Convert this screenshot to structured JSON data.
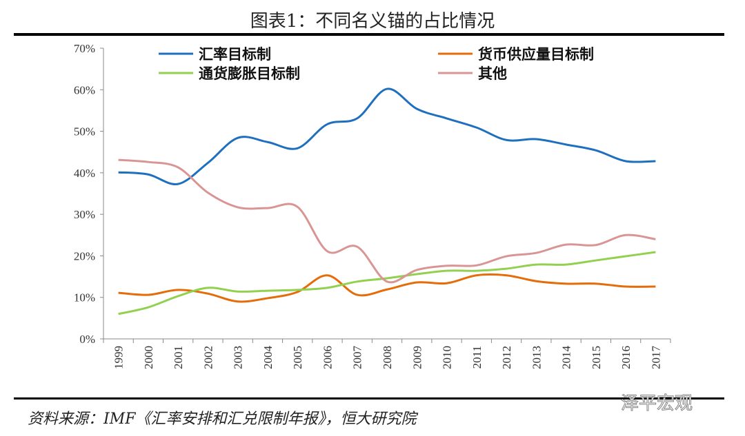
{
  "chart_data": {
    "type": "line",
    "title": "图表1：不同名义锚的占比情况",
    "xlabel": "",
    "ylabel": "",
    "ylim": [
      0,
      70
    ],
    "yticks": [
      "0%",
      "10%",
      "20%",
      "30%",
      "40%",
      "50%",
      "60%",
      "70%"
    ],
    "categories": [
      "1999",
      "2000",
      "2001",
      "2002",
      "2003",
      "2004",
      "2005",
      "2006",
      "2007",
      "2008",
      "2009",
      "2010",
      "2011",
      "2012",
      "2013",
      "2014",
      "2015",
      "2016",
      "2017"
    ],
    "legend_placement": "top",
    "grid": false,
    "series": [
      {
        "name": "汇率目标制",
        "color": "#1f6fbf",
        "values": [
          40.1,
          39.6,
          37.3,
          42.4,
          48.4,
          47.4,
          45.9,
          51.7,
          53.1,
          60.2,
          55.4,
          53.1,
          50.9,
          47.9,
          48.1,
          46.8,
          45.4,
          42.8,
          42.8
        ]
      },
      {
        "name": "货币供应量目标制",
        "color": "#e46c0a",
        "values": [
          11.1,
          10.6,
          11.8,
          10.9,
          9.0,
          9.8,
          11.3,
          15.3,
          10.6,
          11.9,
          13.6,
          13.4,
          15.3,
          15.3,
          13.9,
          13.3,
          13.3,
          12.6,
          12.6
        ]
      },
      {
        "name": "通货膨胀目标制",
        "color": "#92d050",
        "values": [
          6.0,
          7.6,
          10.3,
          12.3,
          11.4,
          11.6,
          11.8,
          12.3,
          13.8,
          14.6,
          15.6,
          16.4,
          16.4,
          16.9,
          17.9,
          17.9,
          18.9,
          19.9,
          20.9
        ]
      },
      {
        "name": "其他",
        "color": "#d99594",
        "values": [
          43.1,
          42.6,
          41.3,
          35.2,
          31.7,
          31.5,
          31.8,
          21.1,
          22.2,
          13.8,
          16.6,
          17.6,
          17.7,
          19.9,
          20.7,
          22.7,
          22.6,
          25.0,
          24.0
        ]
      }
    ]
  },
  "source": "资料来源：IMF《汇率安排和汇兑限制年报》，恒大研究院",
  "watermark": "泽平宏观"
}
